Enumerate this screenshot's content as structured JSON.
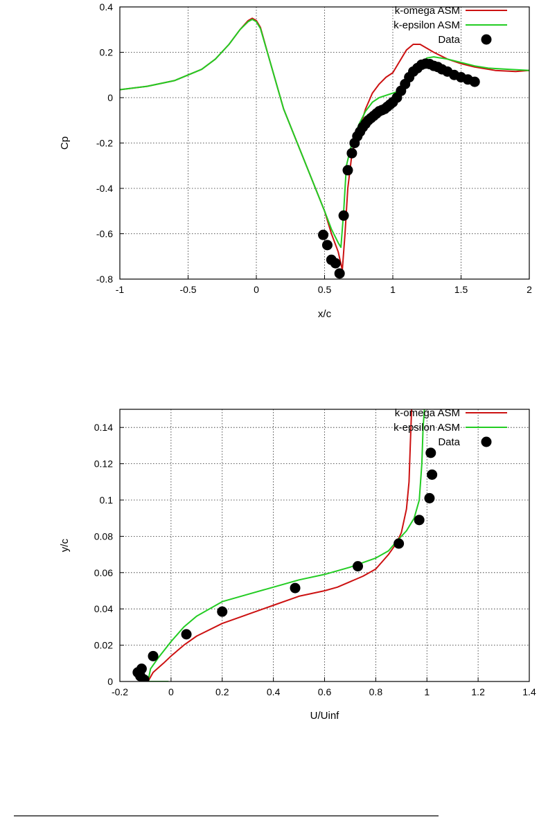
{
  "colors": {
    "k_omega": "#cc1111",
    "k_epsilon": "#22cc22",
    "data": "#000000"
  },
  "chart_data": [
    {
      "type": "line",
      "xlabel": "x/c",
      "ylabel": "Cp",
      "xlim": [
        -1,
        2
      ],
      "ylim": [
        -0.8,
        0.4
      ],
      "xticks": [
        "-1",
        "-0.5",
        "0",
        "0.5",
        "1",
        "1.5",
        "2"
      ],
      "yticks": [
        "-0.8",
        "-0.6",
        "-0.4",
        "-0.2",
        "0",
        "0.2",
        "0.4"
      ],
      "grid": true,
      "legend_position": "top-right",
      "series": [
        {
          "name": "k-omega ASM",
          "kind": "line",
          "color": "#cc1111",
          "points": [
            [
              -1,
              0.035
            ],
            [
              -0.8,
              0.05
            ],
            [
              -0.6,
              0.075
            ],
            [
              -0.4,
              0.125
            ],
            [
              -0.3,
              0.17
            ],
            [
              -0.2,
              0.235
            ],
            [
              -0.12,
              0.3
            ],
            [
              -0.06,
              0.34
            ],
            [
              -0.03,
              0.35
            ],
            [
              0.0,
              0.34
            ],
            [
              0.03,
              0.31
            ],
            [
              0.1,
              0.16
            ],
            [
              0.2,
              -0.05
            ],
            [
              0.3,
              -0.2
            ],
            [
              0.4,
              -0.35
            ],
            [
              0.5,
              -0.5
            ],
            [
              0.55,
              -0.6
            ],
            [
              0.6,
              -0.68
            ],
            [
              0.63,
              -0.76
            ],
            [
              0.65,
              -0.6
            ],
            [
              0.67,
              -0.4
            ],
            [
              0.7,
              -0.25
            ],
            [
              0.75,
              -0.15
            ],
            [
              0.8,
              -0.05
            ],
            [
              0.85,
              0.02
            ],
            [
              0.9,
              0.06
            ],
            [
              0.95,
              0.09
            ],
            [
              1.0,
              0.11
            ],
            [
              1.05,
              0.16
            ],
            [
              1.1,
              0.21
            ],
            [
              1.15,
              0.235
            ],
            [
              1.2,
              0.235
            ],
            [
              1.3,
              0.2
            ],
            [
              1.4,
              0.17
            ],
            [
              1.5,
              0.15
            ],
            [
              1.6,
              0.135
            ],
            [
              1.75,
              0.12
            ],
            [
              1.9,
              0.115
            ],
            [
              2.0,
              0.12
            ]
          ]
        },
        {
          "name": "k-epsilon ASM",
          "kind": "line",
          "color": "#22cc22",
          "points": [
            [
              -1,
              0.035
            ],
            [
              -0.8,
              0.05
            ],
            [
              -0.6,
              0.075
            ],
            [
              -0.4,
              0.125
            ],
            [
              -0.3,
              0.17
            ],
            [
              -0.2,
              0.235
            ],
            [
              -0.12,
              0.3
            ],
            [
              -0.06,
              0.335
            ],
            [
              -0.03,
              0.345
            ],
            [
              0.0,
              0.335
            ],
            [
              0.03,
              0.305
            ],
            [
              0.1,
              0.16
            ],
            [
              0.2,
              -0.05
            ],
            [
              0.3,
              -0.2
            ],
            [
              0.4,
              -0.35
            ],
            [
              0.5,
              -0.5
            ],
            [
              0.55,
              -0.58
            ],
            [
              0.6,
              -0.64
            ],
            [
              0.62,
              -0.66
            ],
            [
              0.64,
              -0.5
            ],
            [
              0.66,
              -0.3
            ],
            [
              0.7,
              -0.2
            ],
            [
              0.75,
              -0.12
            ],
            [
              0.8,
              -0.06
            ],
            [
              0.85,
              -0.02
            ],
            [
              0.9,
              0.0
            ],
            [
              0.95,
              0.01
            ],
            [
              1.0,
              0.02
            ],
            [
              1.05,
              0.03
            ],
            [
              1.1,
              0.06
            ],
            [
              1.15,
              0.1
            ],
            [
              1.2,
              0.15
            ],
            [
              1.25,
              0.175
            ],
            [
              1.3,
              0.18
            ],
            [
              1.4,
              0.17
            ],
            [
              1.5,
              0.155
            ],
            [
              1.6,
              0.14
            ],
            [
              1.7,
              0.13
            ],
            [
              1.85,
              0.125
            ],
            [
              2.0,
              0.12
            ]
          ]
        },
        {
          "name": "Data",
          "kind": "scatter",
          "color": "#000000",
          "points": [
            [
              0.49,
              -0.605
            ],
            [
              0.52,
              -0.65
            ],
            [
              0.55,
              -0.715
            ],
            [
              0.58,
              -0.73
            ],
            [
              0.61,
              -0.775
            ],
            [
              0.64,
              -0.52
            ],
            [
              0.67,
              -0.32
            ],
            [
              0.7,
              -0.245
            ],
            [
              0.72,
              -0.2
            ],
            [
              0.74,
              -0.17
            ],
            [
              0.76,
              -0.15
            ],
            [
              0.78,
              -0.13
            ],
            [
              0.8,
              -0.115
            ],
            [
              0.82,
              -0.1
            ],
            [
              0.84,
              -0.09
            ],
            [
              0.86,
              -0.08
            ],
            [
              0.88,
              -0.07
            ],
            [
              0.9,
              -0.06
            ],
            [
              0.92,
              -0.055
            ],
            [
              0.94,
              -0.05
            ],
            [
              0.96,
              -0.04
            ],
            [
              0.98,
              -0.03
            ],
            [
              1.0,
              -0.02
            ],
            [
              1.03,
              0.0
            ],
            [
              1.06,
              0.03
            ],
            [
              1.09,
              0.06
            ],
            [
              1.12,
              0.09
            ],
            [
              1.15,
              0.115
            ],
            [
              1.18,
              0.13
            ],
            [
              1.21,
              0.145
            ],
            [
              1.24,
              0.15
            ],
            [
              1.27,
              0.148
            ],
            [
              1.3,
              0.14
            ],
            [
              1.33,
              0.135
            ],
            [
              1.36,
              0.125
            ],
            [
              1.4,
              0.115
            ],
            [
              1.45,
              0.1
            ],
            [
              1.5,
              0.09
            ],
            [
              1.55,
              0.08
            ],
            [
              1.6,
              0.07
            ]
          ]
        }
      ]
    },
    {
      "type": "line",
      "xlabel": "U/Uinf",
      "ylabel": "y/c",
      "xlim": [
        -0.2,
        1.4
      ],
      "ylim": [
        0,
        0.15
      ],
      "xticks": [
        "-0.2",
        "0",
        "0.2",
        "0.4",
        "0.6",
        "0.8",
        "1",
        "1.2",
        "1.4"
      ],
      "yticks": [
        "0",
        "0.02",
        "0.04",
        "0.06",
        "0.08",
        "0.1",
        "0.12",
        "0.14"
      ],
      "grid": true,
      "legend_position": "top-right",
      "series": [
        {
          "name": "k-omega ASM",
          "kind": "line",
          "color": "#cc1111",
          "points": [
            [
              -0.09,
              0.0
            ],
            [
              -0.07,
              0.005
            ],
            [
              -0.03,
              0.01
            ],
            [
              0.0,
              0.014
            ],
            [
              0.05,
              0.02
            ],
            [
              0.1,
              0.025
            ],
            [
              0.2,
              0.032
            ],
            [
              0.3,
              0.037
            ],
            [
              0.4,
              0.042
            ],
            [
              0.5,
              0.047
            ],
            [
              0.6,
              0.05
            ],
            [
              0.65,
              0.052
            ],
            [
              0.7,
              0.055
            ],
            [
              0.75,
              0.058
            ],
            [
              0.8,
              0.062
            ],
            [
              0.85,
              0.07
            ],
            [
              0.88,
              0.076
            ],
            [
              0.9,
              0.082
            ],
            [
              0.92,
              0.095
            ],
            [
              0.93,
              0.11
            ],
            [
              0.935,
              0.13
            ],
            [
              0.94,
              0.15
            ]
          ]
        },
        {
          "name": "k-epsilon ASM",
          "kind": "line",
          "color": "#22cc22",
          "points": [
            [
              -0.01,
              0.0
            ],
            [
              -0.09,
              0.0
            ],
            [
              -0.08,
              0.007
            ],
            [
              -0.05,
              0.013
            ],
            [
              0.0,
              0.022
            ],
            [
              0.05,
              0.03
            ],
            [
              0.1,
              0.036
            ],
            [
              0.2,
              0.044
            ],
            [
              0.3,
              0.048
            ],
            [
              0.4,
              0.052
            ],
            [
              0.5,
              0.056
            ],
            [
              0.6,
              0.059
            ],
            [
              0.7,
              0.063
            ],
            [
              0.8,
              0.068
            ],
            [
              0.85,
              0.072
            ],
            [
              0.88,
              0.077
            ],
            [
              0.92,
              0.083
            ],
            [
              0.95,
              0.09
            ],
            [
              0.97,
              0.1
            ],
            [
              0.98,
              0.12
            ],
            [
              0.985,
              0.14
            ],
            [
              0.99,
              0.15
            ]
          ]
        },
        {
          "name": "Data",
          "kind": "scatter",
          "color": "#000000",
          "points": [
            [
              -0.13,
              0.005
            ],
            [
              -0.12,
              0.003
            ],
            [
              -0.115,
              0.007
            ],
            [
              -0.105,
              0.001
            ],
            [
              -0.07,
              0.014
            ],
            [
              0.06,
              0.026
            ],
            [
              0.2,
              0.0385
            ],
            [
              0.485,
              0.0515
            ],
            [
              0.73,
              0.0635
            ],
            [
              0.89,
              0.076
            ],
            [
              0.97,
              0.089
            ],
            [
              1.01,
              0.101
            ],
            [
              1.02,
              0.114
            ],
            [
              1.015,
              0.126
            ]
          ]
        }
      ]
    }
  ]
}
